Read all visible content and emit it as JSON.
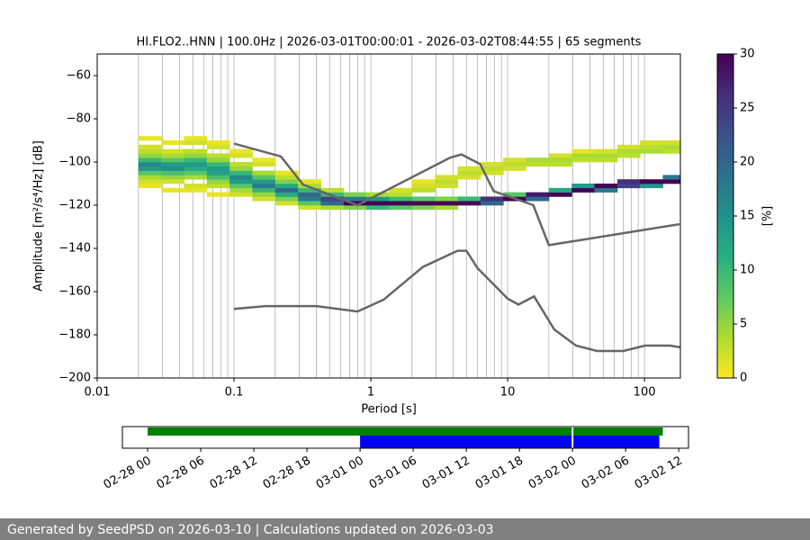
{
  "chart_data": [
    {
      "type": "heatmap",
      "title": "HI.FLO2..HNN | 100.0Hz | 2026-03-01T00:00:01 - 2026-03-02T08:44:55 | 65 segments",
      "x_label": "Period [s]",
      "y_label": "Amplitude [m²/s⁴/Hz] [dB]",
      "log_x": true,
      "xlim": [
        0.01,
        183
      ],
      "xticks": [
        0.01,
        0.1,
        1,
        10,
        100
      ],
      "xminor_ticks": [
        0.02,
        0.03,
        0.04,
        0.05,
        0.06,
        0.07,
        0.08,
        0.09,
        0.2,
        0.3,
        0.4,
        0.5,
        0.6,
        0.7,
        0.8,
        0.9,
        2,
        3,
        4,
        5,
        6,
        7,
        8,
        9,
        20,
        30,
        40,
        50,
        60,
        70,
        80,
        90
      ],
      "grid": true,
      "ylim": [
        -200,
        -50
      ],
      "yticks": [
        {
          "value": -60,
          "label": "−60"
        },
        {
          "value": -80,
          "label": "−80"
        },
        {
          "value": -100,
          "label": "−100"
        },
        {
          "value": -120,
          "label": "−120"
        },
        {
          "value": -140,
          "label": "−140"
        },
        {
          "value": -160,
          "label": "−160"
        },
        {
          "value": -180,
          "label": "−180"
        },
        {
          "value": -200,
          "label": "−200"
        }
      ],
      "colorbar": {
        "label": "[%]",
        "clim": [
          0,
          30
        ],
        "ticks": [
          0,
          5,
          10,
          15,
          20,
          25,
          30
        ],
        "cmap": "viridis_r"
      },
      "density": {
        "period_edges": [
          0.02,
          0.0294,
          0.0431,
          0.0633,
          0.0928,
          0.136,
          0.2,
          0.294,
          0.431,
          0.633,
          0.928,
          1.36,
          2,
          2.94,
          4.31,
          6.33,
          9.28,
          13.6,
          20,
          29.4,
          43.1,
          63.3,
          92.8,
          136,
          183
        ],
        "columns": [
          [
            [
              -112,
              -110,
              1
            ],
            [
              -110,
              -108,
              2
            ],
            [
              -108,
              -106,
              4
            ],
            [
              -106,
              -104,
              8
            ],
            [
              -104,
              -102,
              14
            ],
            [
              -102,
              -100,
              16
            ],
            [
              -100,
              -98,
              10
            ],
            [
              -98,
              -96,
              5
            ],
            [
              -96,
              -94,
              3
            ],
            [
              -94,
              -92,
              2
            ],
            [
              -90,
              -88,
              1
            ]
          ],
          [
            [
              -114,
              -112,
              1
            ],
            [
              -110,
              -108,
              2
            ],
            [
              -108,
              -106,
              5
            ],
            [
              -106,
              -104,
              9
            ],
            [
              -104,
              -102,
              15
            ],
            [
              -102,
              -100,
              14
            ],
            [
              -100,
              -98,
              8
            ],
            [
              -98,
              -96,
              4
            ],
            [
              -96,
              -94,
              2
            ],
            [
              -92,
              -90,
              1
            ]
          ],
          [
            [
              -114,
              -112,
              1
            ],
            [
              -112,
              -110,
              2
            ],
            [
              -108,
              -106,
              4
            ],
            [
              -106,
              -104,
              8
            ],
            [
              -104,
              -102,
              12
            ],
            [
              -102,
              -100,
              14
            ],
            [
              -100,
              -98,
              10
            ],
            [
              -98,
              -96,
              5
            ],
            [
              -96,
              -94,
              3
            ],
            [
              -92,
              -90,
              2
            ],
            [
              -90,
              -88,
              1
            ]
          ],
          [
            [
              -116,
              -114,
              1
            ],
            [
              -112,
              -110,
              3
            ],
            [
              -110,
              -108,
              5
            ],
            [
              -108,
              -106,
              9
            ],
            [
              -106,
              -104,
              13
            ],
            [
              -104,
              -102,
              14
            ],
            [
              -102,
              -100,
              10
            ],
            [
              -100,
              -98,
              5
            ],
            [
              -98,
              -96,
              3
            ],
            [
              -94,
              -92,
              2
            ],
            [
              -92,
              -90,
              1
            ]
          ],
          [
            [
              -116,
              -114,
              2
            ],
            [
              -114,
              -112,
              4
            ],
            [
              -112,
              -110,
              8
            ],
            [
              -110,
              -108,
              14
            ],
            [
              -108,
              -106,
              16
            ],
            [
              -106,
              -104,
              10
            ],
            [
              -104,
              -102,
              5
            ],
            [
              -102,
              -100,
              3
            ],
            [
              -98,
              -96,
              2
            ],
            [
              -96,
              -94,
              1
            ]
          ],
          [
            [
              -118,
              -116,
              2
            ],
            [
              -116,
              -114,
              5
            ],
            [
              -114,
              -112,
              10
            ],
            [
              -112,
              -110,
              18
            ],
            [
              -110,
              -108,
              14
            ],
            [
              -108,
              -106,
              8
            ],
            [
              -106,
              -104,
              4
            ],
            [
              -102,
              -100,
              2
            ],
            [
              -100,
              -98,
              1
            ]
          ],
          [
            [
              -120,
              -118,
              2
            ],
            [
              -118,
              -116,
              6
            ],
            [
              -116,
              -114,
              12
            ],
            [
              -114,
              -112,
              20
            ],
            [
              -112,
              -110,
              12
            ],
            [
              -110,
              -108,
              6
            ],
            [
              -108,
              -106,
              3
            ],
            [
              -106,
              -104,
              1
            ]
          ],
          [
            [
              -122,
              -120,
              2
            ],
            [
              -120,
              -118,
              8
            ],
            [
              -118,
              -116,
              18
            ],
            [
              -116,
              -114,
              20
            ],
            [
              -114,
              -112,
              10
            ],
            [
              -112,
              -110,
              4
            ],
            [
              -110,
              -108,
              1
            ]
          ],
          [
            [
              -122,
              -120,
              4
            ],
            [
              -120,
              -118,
              20
            ],
            [
              -118,
              -116,
              24
            ],
            [
              -116,
              -114,
              10
            ],
            [
              -114,
              -112,
              3
            ]
          ],
          [
            [
              -122,
              -120,
              6
            ],
            [
              -120,
              -118,
              30
            ],
            [
              -118,
              -116,
              18
            ],
            [
              -116,
              -114,
              6
            ]
          ],
          [
            [
              -122,
              -120,
              10
            ],
            [
              -120,
              -118,
              32
            ],
            [
              -118,
              -116,
              14
            ],
            [
              -116,
              -114,
              4
            ]
          ],
          [
            [
              -122,
              -120,
              8
            ],
            [
              -120,
              -118,
              30
            ],
            [
              -118,
              -116,
              10
            ],
            [
              -116,
              -114,
              3
            ],
            [
              -114,
              -112,
              2
            ]
          ],
          [
            [
              -122,
              -120,
              6
            ],
            [
              -120,
              -118,
              30
            ],
            [
              -118,
              -116,
              8
            ],
            [
              -114,
              -112,
              3
            ],
            [
              -112,
              -110,
              2
            ],
            [
              -110,
              -108,
              1
            ]
          ],
          [
            [
              -122,
              -120,
              4
            ],
            [
              -120,
              -118,
              32
            ],
            [
              -118,
              -116,
              6
            ],
            [
              -112,
              -110,
              2
            ],
            [
              -110,
              -108,
              3
            ],
            [
              -108,
              -106,
              2
            ]
          ],
          [
            [
              -120,
              -118,
              30
            ],
            [
              -118,
              -116,
              10
            ],
            [
              -108,
              -106,
              2
            ],
            [
              -106,
              -104,
              3
            ],
            [
              -104,
              -102,
              2
            ]
          ],
          [
            [
              -120,
              -118,
              20
            ],
            [
              -118,
              -116,
              26
            ],
            [
              -106,
              -104,
              2
            ],
            [
              -104,
              -102,
              3
            ],
            [
              -102,
              -100,
              2
            ]
          ],
          [
            [
              -118,
              -116,
              32
            ],
            [
              -116,
              -114,
              8
            ],
            [
              -104,
              -102,
              2
            ],
            [
              -102,
              -100,
              3
            ],
            [
              -100,
              -98,
              2
            ]
          ],
          [
            [
              -118,
              -116,
              20
            ],
            [
              -116,
              -114,
              28
            ],
            [
              -102,
              -100,
              3
            ],
            [
              -100,
              -98,
              4
            ]
          ],
          [
            [
              -116,
              -114,
              30
            ],
            [
              -114,
              -112,
              12
            ],
            [
              -102,
              -100,
              3
            ],
            [
              -100,
              -98,
              4
            ],
            [
              -98,
              -96,
              2
            ]
          ],
          [
            [
              -114,
              -112,
              30
            ],
            [
              -112,
              -110,
              14
            ],
            [
              -100,
              -98,
              3
            ],
            [
              -98,
              -96,
              4
            ],
            [
              -96,
              -94,
              1
            ]
          ],
          [
            [
              -114,
              -112,
              18
            ],
            [
              -112,
              -110,
              30
            ],
            [
              -100,
              -98,
              3
            ],
            [
              -98,
              -96,
              4
            ],
            [
              -96,
              -94,
              2
            ]
          ],
          [
            [
              -112,
              -110,
              24
            ],
            [
              -110,
              -108,
              26
            ],
            [
              -98,
              -96,
              3
            ],
            [
              -96,
              -94,
              4
            ],
            [
              -94,
              -92,
              2
            ]
          ],
          [
            [
              -112,
              -110,
              14
            ],
            [
              -110,
              -108,
              32
            ],
            [
              -96,
              -94,
              4
            ],
            [
              -94,
              -92,
              3
            ],
            [
              -92,
              -90,
              2
            ]
          ],
          [
            [
              -110,
              -108,
              30
            ],
            [
              -108,
              -106,
              18
            ],
            [
              -96,
              -94,
              3
            ],
            [
              -94,
              -92,
              4
            ],
            [
              -92,
              -90,
              2
            ]
          ]
        ]
      },
      "series": [
        {
          "color": "#666666",
          "x": [
            0.1,
            0.22,
            0.32,
            0.8,
            3.8,
            4.6,
            6.3,
            7.9,
            15.4,
            20,
            180
          ],
          "values": [
            -91.5,
            -97.4,
            -110.5,
            -120,
            -98,
            -96.5,
            -101,
            -113.5,
            -120,
            -138.5,
            -128.8
          ]
        },
        {
          "color": "#666666",
          "x": [
            0.1,
            0.17,
            0.4,
            0.8,
            1.24,
            2.4,
            4.3,
            5,
            6,
            10,
            12,
            15.6,
            21.9,
            31.6,
            45,
            70,
            101,
            154,
            183
          ],
          "values": [
            -168,
            -166.7,
            -166.7,
            -169.2,
            -163.7,
            -148.6,
            -141.1,
            -141.1,
            -149,
            -163.3,
            -166,
            -162.2,
            -177.5,
            -185,
            -187.5,
            -187.5,
            -185,
            -185,
            -185.8
          ]
        }
      ]
    },
    {
      "type": "timeline",
      "xlim": [
        -2.85,
        61.1
      ],
      "xticks": [
        {
          "value": 0,
          "label": "02-28 00"
        },
        {
          "value": 6,
          "label": "02-28 06"
        },
        {
          "value": 12,
          "label": "02-28 12"
        },
        {
          "value": 18,
          "label": "02-28 18"
        },
        {
          "value": 24,
          "label": "03-01 00"
        },
        {
          "value": 30,
          "label": "03-01 06"
        },
        {
          "value": 36,
          "label": "03-01 12"
        },
        {
          "value": 42,
          "label": "03-01 18"
        },
        {
          "value": 48,
          "label": "03-02 00"
        },
        {
          "value": 54,
          "label": "03-02 06"
        },
        {
          "value": 60,
          "label": "03-02 12"
        }
      ],
      "series": [
        {
          "color": "#008000",
          "segments": [
            [
              0,
              47.9
            ],
            [
              48.1,
              58.2
            ]
          ]
        },
        {
          "color": "#0000ff",
          "segments": [
            [
              24,
              47.9
            ],
            [
              48.1,
              57.8
            ]
          ]
        }
      ]
    }
  ],
  "footer": {
    "text": "Generated by SeedPSD on 2026-03-10 | Calculations updated on 2026-03-03"
  }
}
